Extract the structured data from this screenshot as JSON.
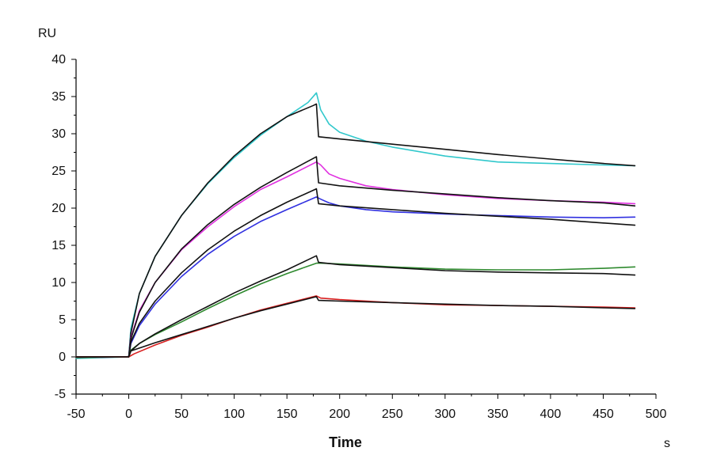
{
  "chart_data": {
    "type": "line",
    "title": "",
    "xlabel": "Time",
    "xunit": "s",
    "yunit": "RU",
    "xlim": [
      -50,
      500
    ],
    "ylim": [
      -5,
      40
    ],
    "x_ticks": [
      -50,
      0,
      50,
      100,
      150,
      200,
      250,
      300,
      350,
      400,
      450,
      500
    ],
    "y_ticks": [
      -5,
      0,
      5,
      10,
      15,
      20,
      25,
      30,
      35,
      40
    ],
    "grid": false,
    "legend": "none",
    "series": [
      {
        "color": "#31c8cc",
        "x": [
          -50,
          0,
          2,
          10,
          25,
          50,
          75,
          100,
          125,
          150,
          170,
          178,
          182,
          190,
          200,
          225,
          250,
          300,
          350,
          400,
          450,
          480
        ],
        "y": [
          -0.2,
          0,
          3.8,
          8.5,
          13.5,
          19,
          23.3,
          26.8,
          29.8,
          32.3,
          34.2,
          35.5,
          33.2,
          31.3,
          30.2,
          29,
          28.2,
          27,
          26.2,
          26,
          25.8,
          25.7
        ]
      },
      {
        "color": "#111111",
        "x": [
          -50,
          0,
          2,
          10,
          25,
          50,
          75,
          100,
          125,
          150,
          175,
          178,
          180,
          200,
          250,
          300,
          350,
          400,
          450,
          480
        ],
        "y": [
          0,
          0,
          3.2,
          8.5,
          13.5,
          19,
          23.4,
          27,
          30,
          32.3,
          33.8,
          34,
          29.6,
          29.3,
          28.6,
          27.9,
          27.2,
          26.6,
          26,
          25.7
        ]
      },
      {
        "color": "#e030e0",
        "x": [
          -50,
          0,
          2,
          10,
          25,
          50,
          75,
          100,
          125,
          150,
          178,
          182,
          190,
          200,
          225,
          250,
          300,
          350,
          400,
          450,
          480
        ],
        "y": [
          -0.1,
          0,
          2.6,
          6.2,
          10,
          14.4,
          17.5,
          20.2,
          22.5,
          24.2,
          26.2,
          25.8,
          24.6,
          24,
          23,
          22.5,
          21.8,
          21.3,
          21,
          20.8,
          20.6
        ]
      },
      {
        "color": "#111111",
        "x": [
          -50,
          0,
          2,
          10,
          25,
          50,
          75,
          100,
          125,
          150,
          178,
          180,
          200,
          250,
          300,
          350,
          400,
          450,
          480
        ],
        "y": [
          0,
          0,
          2.4,
          6,
          10,
          14.5,
          17.8,
          20.5,
          22.8,
          24.8,
          26.9,
          23.4,
          23,
          22.4,
          21.9,
          21.4,
          21,
          20.7,
          20.3
        ]
      },
      {
        "color": "#3030e0",
        "x": [
          -50,
          0,
          2,
          10,
          25,
          50,
          75,
          100,
          125,
          150,
          178,
          182,
          190,
          200,
          225,
          250,
          300,
          350,
          400,
          450,
          480
        ],
        "y": [
          -0.1,
          0,
          1.8,
          4.2,
          7.1,
          10.8,
          13.8,
          16.2,
          18.2,
          19.8,
          21.5,
          21.2,
          20.7,
          20.3,
          19.8,
          19.5,
          19.2,
          19,
          18.8,
          18.7,
          18.8
        ]
      },
      {
        "color": "#111111",
        "x": [
          -50,
          0,
          2,
          10,
          25,
          50,
          75,
          100,
          125,
          150,
          178,
          180,
          200,
          250,
          300,
          350,
          400,
          450,
          480
        ],
        "y": [
          0,
          0,
          2,
          4.5,
          7.5,
          11.3,
          14.4,
          16.9,
          19,
          20.8,
          22.6,
          20.6,
          20.3,
          19.8,
          19.3,
          18.9,
          18.5,
          18,
          17.7
        ]
      },
      {
        "color": "#2f8a2f",
        "x": [
          -50,
          0,
          2,
          10,
          25,
          50,
          75,
          100,
          125,
          150,
          178,
          182,
          200,
          250,
          300,
          350,
          400,
          450,
          480
        ],
        "y": [
          -0.1,
          0,
          0.9,
          1.8,
          3,
          4.7,
          6.5,
          8.2,
          9.8,
          11.2,
          12.6,
          12.6,
          12.5,
          12.1,
          11.8,
          11.7,
          11.7,
          11.9,
          12.1
        ]
      },
      {
        "color": "#111111",
        "x": [
          -50,
          0,
          2,
          10,
          25,
          50,
          75,
          100,
          125,
          150,
          178,
          180,
          200,
          250,
          300,
          350,
          400,
          450,
          480
        ],
        "y": [
          0,
          0,
          0.8,
          1.8,
          3.1,
          5,
          6.8,
          8.6,
          10.2,
          11.7,
          13.6,
          12.7,
          12.4,
          12,
          11.6,
          11.4,
          11.3,
          11.2,
          11
        ]
      },
      {
        "color": "#d82020",
        "x": [
          -50,
          0,
          5,
          25,
          50,
          75,
          100,
          125,
          150,
          178,
          182,
          200,
          250,
          300,
          350,
          400,
          450,
          480
        ],
        "y": [
          0,
          0,
          0.4,
          1.6,
          2.9,
          4,
          5.2,
          6.3,
          7.2,
          8.2,
          7.9,
          7.7,
          7.3,
          7,
          6.9,
          6.8,
          6.7,
          6.6
        ]
      },
      {
        "color": "#111111",
        "x": [
          -50,
          0,
          2,
          25,
          50,
          75,
          100,
          125,
          150,
          178,
          180,
          200,
          250,
          300,
          350,
          400,
          450,
          480
        ],
        "y": [
          0,
          0,
          0.8,
          1.9,
          3,
          4.1,
          5.2,
          6.2,
          7.1,
          8.1,
          7.6,
          7.5,
          7.3,
          7.1,
          6.9,
          6.8,
          6.6,
          6.5
        ]
      }
    ]
  }
}
